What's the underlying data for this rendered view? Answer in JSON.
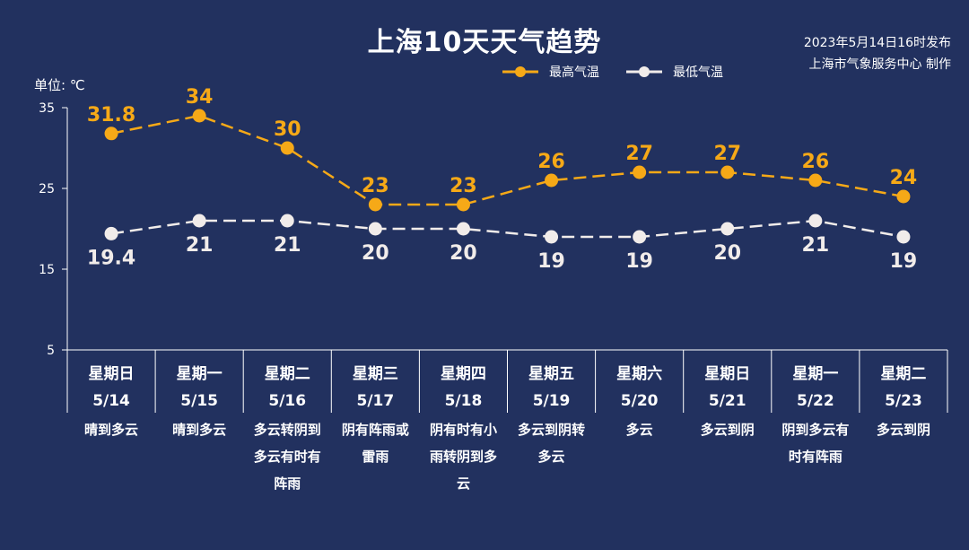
{
  "title": "上海10天天气趋势",
  "issue_line1": "2023年5月14日16时发布",
  "issue_line2": "上海市气象服务中心 制作",
  "unit_label": "单位: ℃",
  "colors": {
    "background": "#22315f",
    "high": "#f6a917",
    "low": "#f1ecea",
    "axis": "#ffffff"
  },
  "chart_data": {
    "type": "line",
    "title": "上海10天天气趋势",
    "ylim": [
      5,
      35
    ],
    "yticks": [
      5,
      15,
      25,
      35
    ],
    "ylabel": "单位: ℃",
    "legend_position": "top-right",
    "days": [
      {
        "weekday": "星期日",
        "date": "5/14",
        "weather": [
          "晴到多云"
        ]
      },
      {
        "weekday": "星期一",
        "date": "5/15",
        "weather": [
          "晴到多云"
        ]
      },
      {
        "weekday": "星期二",
        "date": "5/16",
        "weather": [
          "多云转阴到",
          "多云有时有",
          "阵雨"
        ]
      },
      {
        "weekday": "星期三",
        "date": "5/17",
        "weather": [
          "阴有阵雨或",
          "雷雨"
        ]
      },
      {
        "weekday": "星期四",
        "date": "5/18",
        "weather": [
          "阴有时有小",
          "雨转阴到多",
          "云"
        ]
      },
      {
        "weekday": "星期五",
        "date": "5/19",
        "weather": [
          "多云到阴转",
          "多云"
        ]
      },
      {
        "weekday": "星期六",
        "date": "5/20",
        "weather": [
          "多云"
        ]
      },
      {
        "weekday": "星期日",
        "date": "5/21",
        "weather": [
          "多云到阴"
        ]
      },
      {
        "weekday": "星期一",
        "date": "5/22",
        "weather": [
          "阴到多云有",
          "时有阵雨"
        ]
      },
      {
        "weekday": "星期二",
        "date": "5/23",
        "weather": [
          "多云到阴"
        ]
      }
    ],
    "series": [
      {
        "name": "最高气温",
        "values": [
          31.8,
          34,
          30,
          23,
          23,
          26,
          27,
          27,
          26,
          24
        ]
      },
      {
        "name": "最低气温",
        "values": [
          19.4,
          21,
          21,
          20,
          20,
          19,
          19,
          20,
          21,
          19
        ]
      }
    ]
  }
}
